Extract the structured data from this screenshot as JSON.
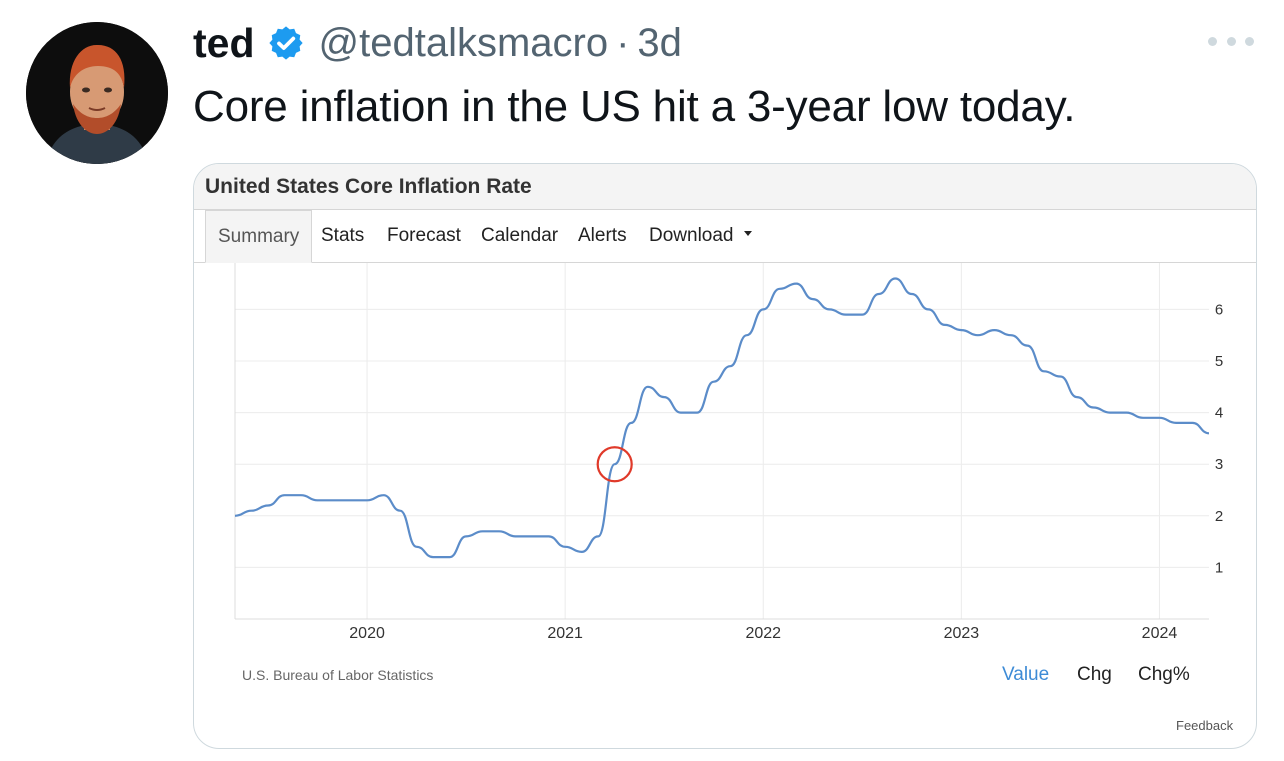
{
  "tweet": {
    "author_name": "ted",
    "handle": "@tedtalksmacro",
    "separator": "·",
    "time": "3d",
    "text": "Core inflation in the US hit a 3-year low today."
  },
  "card": {
    "title": "United States Core Inflation Rate",
    "tabs": [
      {
        "label": "Summary",
        "active": true
      },
      {
        "label": "Stats",
        "active": false
      },
      {
        "label": "Forecast",
        "active": false
      },
      {
        "label": "Calendar",
        "active": false
      },
      {
        "label": "Alerts",
        "active": false
      },
      {
        "label": "Download",
        "active": false
      }
    ],
    "source": "U.S. Bureau of Labor Statistics",
    "view_toggles": [
      "Value",
      "Chg",
      "Chg%"
    ],
    "active_toggle": "Value",
    "feedback": "Feedback"
  },
  "colors": {
    "line": "#5b8cc9",
    "highlight_circle": "#e03a2a",
    "verified": "#1d9bf0",
    "active_toggle": "#3d8bd6"
  },
  "icons": {
    "verified": "verified-badge-icon",
    "more": "more-dots-icon",
    "dropdown": "caret-down-icon"
  },
  "chart_data": {
    "type": "line",
    "title": "United States Core Inflation Rate",
    "xlabel": "",
    "ylabel": "",
    "x_ticks": [
      "2020",
      "2021",
      "2022",
      "2023",
      "2024"
    ],
    "y_ticks": [
      1,
      2,
      3,
      4,
      5,
      6
    ],
    "ylim": [
      0,
      6.9
    ],
    "xlim": [
      "2019-05",
      "2024-04"
    ],
    "y_axis_side": "right",
    "grid": true,
    "highlight": {
      "x": "2021-04",
      "y": 3.0,
      "shape": "circle"
    },
    "series": [
      {
        "x": [
          "2019-05",
          "2019-06",
          "2019-07",
          "2019-08",
          "2019-09",
          "2019-10",
          "2019-11",
          "2019-12",
          "2020-01",
          "2020-02",
          "2020-03",
          "2020-04",
          "2020-05",
          "2020-06",
          "2020-07",
          "2020-08",
          "2020-09",
          "2020-10",
          "2020-11",
          "2020-12",
          "2021-01",
          "2021-02",
          "2021-03",
          "2021-04",
          "2021-05",
          "2021-06",
          "2021-07",
          "2021-08",
          "2021-09",
          "2021-10",
          "2021-11",
          "2021-12",
          "2022-01",
          "2022-02",
          "2022-03",
          "2022-04",
          "2022-05",
          "2022-06",
          "2022-07",
          "2022-08",
          "2022-09",
          "2022-10",
          "2022-11",
          "2022-12",
          "2023-01",
          "2023-02",
          "2023-03",
          "2023-04",
          "2023-05",
          "2023-06",
          "2023-07",
          "2023-08",
          "2023-09",
          "2023-10",
          "2023-11",
          "2023-12",
          "2024-01",
          "2024-02",
          "2024-03",
          "2024-04"
        ],
        "y": [
          2.0,
          2.1,
          2.2,
          2.4,
          2.4,
          2.3,
          2.3,
          2.3,
          2.3,
          2.4,
          2.1,
          1.4,
          1.2,
          1.2,
          1.6,
          1.7,
          1.7,
          1.6,
          1.6,
          1.6,
          1.4,
          1.3,
          1.6,
          3.0,
          3.8,
          4.5,
          4.3,
          4.0,
          4.0,
          4.6,
          4.9,
          5.5,
          6.0,
          6.4,
          6.5,
          6.2,
          6.0,
          5.9,
          5.9,
          6.3,
          6.6,
          6.3,
          6.0,
          5.7,
          5.6,
          5.5,
          5.6,
          5.5,
          5.3,
          4.8,
          4.7,
          4.3,
          4.1,
          4.0,
          4.0,
          3.9,
          3.9,
          3.8,
          3.8,
          3.6
        ]
      }
    ]
  }
}
